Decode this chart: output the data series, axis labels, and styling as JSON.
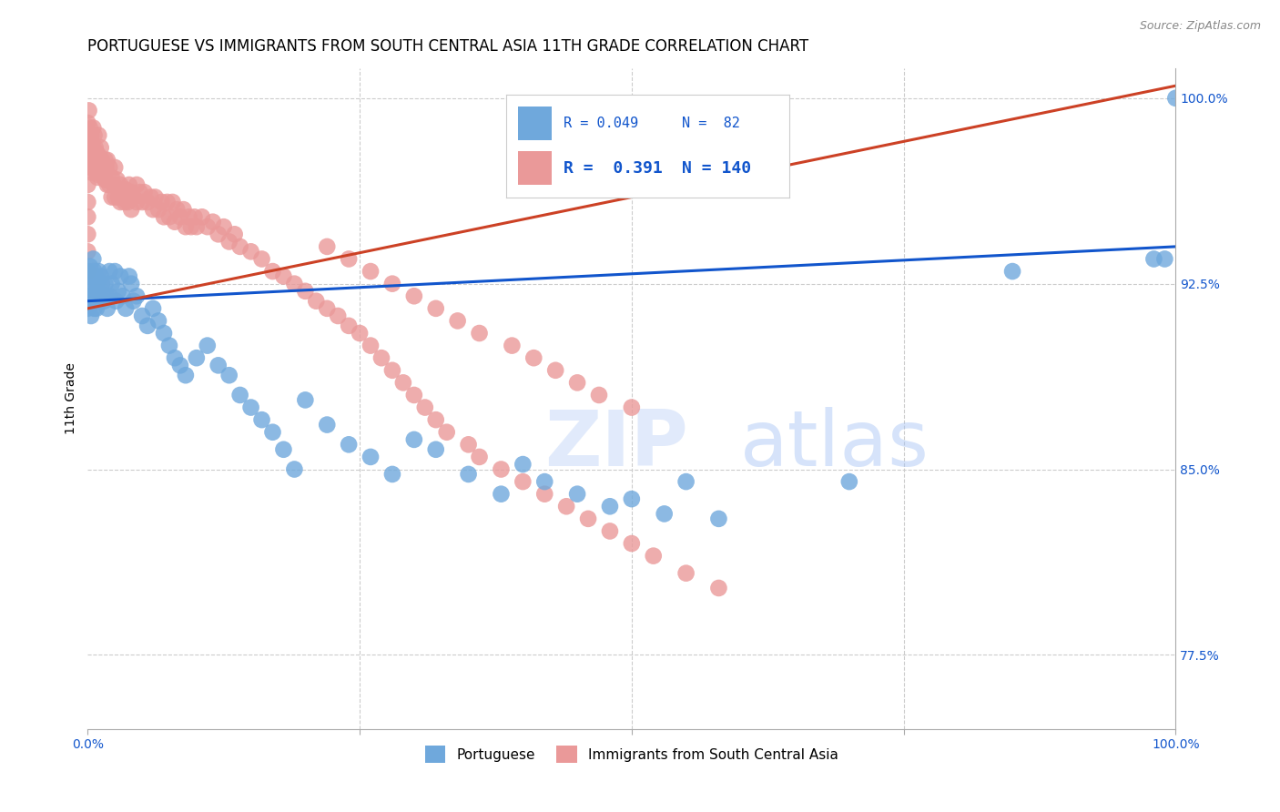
{
  "title": "PORTUGUESE VS IMMIGRANTS FROM SOUTH CENTRAL ASIA 11TH GRADE CORRELATION CHART",
  "source": "Source: ZipAtlas.com",
  "ylabel": "11th Grade",
  "watermark": "ZIPatlas",
  "blue_label": "Portuguese",
  "pink_label": "Immigrants from South Central Asia",
  "blue_R": 0.049,
  "blue_N": 82,
  "pink_R": 0.391,
  "pink_N": 140,
  "xlim": [
    0.0,
    1.0
  ],
  "ylim": [
    0.745,
    1.012
  ],
  "right_yticks": [
    0.775,
    0.85,
    0.925,
    1.0
  ],
  "right_yticklabels": [
    "77.5%",
    "85.0%",
    "92.5%",
    "100.0%"
  ],
  "hlines": [
    0.775,
    0.85,
    0.925,
    1.0
  ],
  "blue_color": "#6fa8dc",
  "pink_color": "#ea9999",
  "blue_line_color": "#1155cc",
  "pink_line_color": "#cc4125",
  "blue_line": {
    "x0": 0.0,
    "y0": 0.918,
    "x1": 1.0,
    "y1": 0.94
  },
  "pink_line": {
    "x0": 0.0,
    "y0": 0.915,
    "x1": 1.0,
    "y1": 1.005
  },
  "blue_scatter_x": [
    0.0,
    0.0,
    0.0,
    0.001,
    0.001,
    0.002,
    0.002,
    0.003,
    0.003,
    0.004,
    0.005,
    0.005,
    0.006,
    0.006,
    0.007,
    0.007,
    0.008,
    0.008,
    0.009,
    0.01,
    0.01,
    0.012,
    0.013,
    0.014,
    0.015,
    0.016,
    0.017,
    0.018,
    0.02,
    0.02,
    0.022,
    0.025,
    0.026,
    0.028,
    0.03,
    0.032,
    0.035,
    0.038,
    0.04,
    0.042,
    0.045,
    0.05,
    0.055,
    0.06,
    0.065,
    0.07,
    0.075,
    0.08,
    0.085,
    0.09,
    0.1,
    0.11,
    0.12,
    0.13,
    0.14,
    0.15,
    0.16,
    0.17,
    0.18,
    0.19,
    0.2,
    0.22,
    0.24,
    0.26,
    0.28,
    0.3,
    0.32,
    0.35,
    0.38,
    0.4,
    0.42,
    0.45,
    0.48,
    0.5,
    0.53,
    0.55,
    0.58,
    0.7,
    0.85,
    0.98,
    0.99,
    1.0
  ],
  "blue_scatter_y": [
    0.93,
    0.922,
    0.915,
    0.928,
    0.92,
    0.932,
    0.918,
    0.925,
    0.912,
    0.928,
    0.935,
    0.92,
    0.93,
    0.915,
    0.928,
    0.92,
    0.925,
    0.915,
    0.922,
    0.93,
    0.918,
    0.928,
    0.925,
    0.92,
    0.918,
    0.925,
    0.92,
    0.915,
    0.93,
    0.92,
    0.925,
    0.93,
    0.918,
    0.922,
    0.928,
    0.92,
    0.915,
    0.928,
    0.925,
    0.918,
    0.92,
    0.912,
    0.908,
    0.915,
    0.91,
    0.905,
    0.9,
    0.895,
    0.892,
    0.888,
    0.895,
    0.9,
    0.892,
    0.888,
    0.88,
    0.875,
    0.87,
    0.865,
    0.858,
    0.85,
    0.878,
    0.868,
    0.86,
    0.855,
    0.848,
    0.862,
    0.858,
    0.848,
    0.84,
    0.852,
    0.845,
    0.84,
    0.835,
    0.838,
    0.832,
    0.845,
    0.83,
    0.845,
    0.93,
    0.935,
    0.935,
    1.0
  ],
  "pink_scatter_x": [
    0.0,
    0.0,
    0.0,
    0.0,
    0.0,
    0.0,
    0.0,
    0.0,
    0.0,
    0.0,
    0.001,
    0.001,
    0.002,
    0.002,
    0.002,
    0.003,
    0.003,
    0.003,
    0.004,
    0.004,
    0.005,
    0.005,
    0.005,
    0.006,
    0.006,
    0.007,
    0.007,
    0.008,
    0.008,
    0.009,
    0.009,
    0.01,
    0.01,
    0.01,
    0.012,
    0.012,
    0.013,
    0.014,
    0.015,
    0.016,
    0.016,
    0.017,
    0.018,
    0.018,
    0.02,
    0.02,
    0.022,
    0.022,
    0.024,
    0.025,
    0.025,
    0.027,
    0.028,
    0.03,
    0.03,
    0.032,
    0.034,
    0.035,
    0.037,
    0.038,
    0.04,
    0.04,
    0.042,
    0.045,
    0.045,
    0.048,
    0.05,
    0.052,
    0.055,
    0.058,
    0.06,
    0.062,
    0.065,
    0.068,
    0.07,
    0.073,
    0.075,
    0.078,
    0.08,
    0.082,
    0.085,
    0.088,
    0.09,
    0.093,
    0.095,
    0.098,
    0.1,
    0.105,
    0.11,
    0.115,
    0.12,
    0.125,
    0.13,
    0.135,
    0.14,
    0.15,
    0.16,
    0.17,
    0.18,
    0.19,
    0.2,
    0.21,
    0.22,
    0.23,
    0.24,
    0.25,
    0.26,
    0.27,
    0.28,
    0.29,
    0.3,
    0.31,
    0.32,
    0.33,
    0.35,
    0.36,
    0.38,
    0.4,
    0.42,
    0.44,
    0.46,
    0.48,
    0.5,
    0.52,
    0.55,
    0.58,
    0.22,
    0.24,
    0.26,
    0.28,
    0.3,
    0.32,
    0.34,
    0.36,
    0.39,
    0.41,
    0.43,
    0.45,
    0.47,
    0.5
  ],
  "pink_scatter_y": [
    0.99,
    0.985,
    0.978,
    0.972,
    0.965,
    0.958,
    0.952,
    0.945,
    0.938,
    0.93,
    0.995,
    0.985,
    0.988,
    0.98,
    0.972,
    0.985,
    0.978,
    0.97,
    0.982,
    0.975,
    0.988,
    0.98,
    0.972,
    0.985,
    0.977,
    0.98,
    0.972,
    0.978,
    0.97,
    0.975,
    0.968,
    0.985,
    0.977,
    0.969,
    0.98,
    0.972,
    0.975,
    0.97,
    0.968,
    0.975,
    0.967,
    0.972,
    0.965,
    0.975,
    0.972,
    0.965,
    0.968,
    0.96,
    0.965,
    0.972,
    0.96,
    0.967,
    0.96,
    0.965,
    0.958,
    0.962,
    0.958,
    0.963,
    0.958,
    0.965,
    0.962,
    0.955,
    0.96,
    0.965,
    0.958,
    0.962,
    0.958,
    0.962,
    0.958,
    0.96,
    0.955,
    0.96,
    0.955,
    0.958,
    0.952,
    0.958,
    0.952,
    0.958,
    0.95,
    0.955,
    0.952,
    0.955,
    0.948,
    0.952,
    0.948,
    0.952,
    0.948,
    0.952,
    0.948,
    0.95,
    0.945,
    0.948,
    0.942,
    0.945,
    0.94,
    0.938,
    0.935,
    0.93,
    0.928,
    0.925,
    0.922,
    0.918,
    0.915,
    0.912,
    0.908,
    0.905,
    0.9,
    0.895,
    0.89,
    0.885,
    0.88,
    0.875,
    0.87,
    0.865,
    0.86,
    0.855,
    0.85,
    0.845,
    0.84,
    0.835,
    0.83,
    0.825,
    0.82,
    0.815,
    0.808,
    0.802,
    0.94,
    0.935,
    0.93,
    0.925,
    0.92,
    0.915,
    0.91,
    0.905,
    0.9,
    0.895,
    0.89,
    0.885,
    0.88,
    0.875
  ]
}
